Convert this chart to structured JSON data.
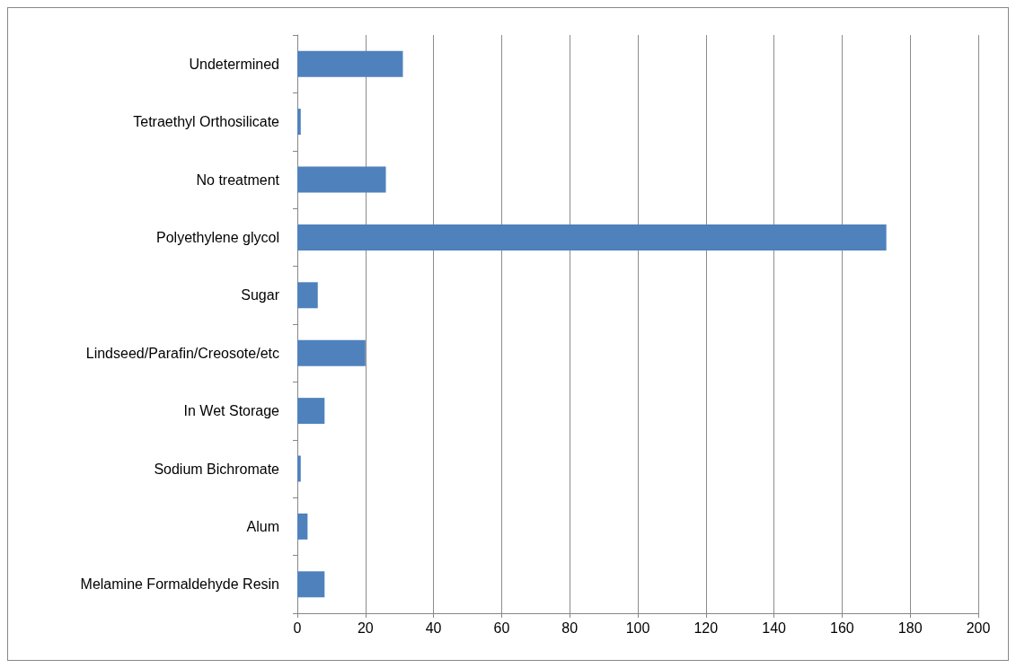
{
  "chart_data": {
    "type": "bar",
    "orientation": "horizontal",
    "categories": [
      "Undetermined",
      "Tetraethyl Orthosilicate",
      "No treatment",
      "Polyethylene glycol",
      "Sugar",
      "Lindseed/Parafin/Creosote/etc",
      "In Wet Storage",
      "Sodium Bichromate",
      "Alum",
      "Melamine Formaldehyde Resin"
    ],
    "values": [
      31,
      1,
      26,
      173,
      6,
      20,
      8,
      1,
      3,
      8
    ],
    "color": "#4f81bd",
    "xlim": [
      0,
      200
    ],
    "xticks": [
      0,
      20,
      40,
      60,
      80,
      100,
      120,
      140,
      160,
      180,
      200
    ],
    "grid": "x"
  }
}
